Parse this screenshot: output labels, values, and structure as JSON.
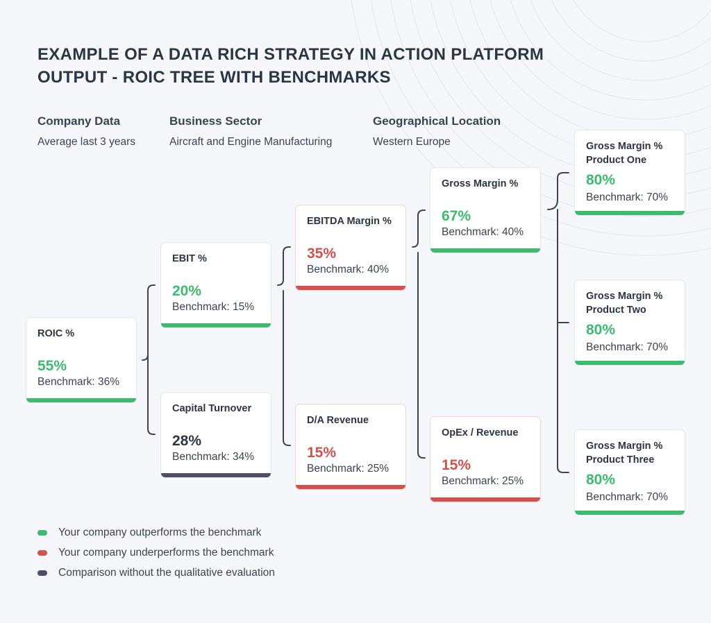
{
  "title": "EXAMPLE OF A DATA RICH STRATEGY IN ACTION PLATFORM OUTPUT - ROIC TREE WITH BENCHMARKS",
  "meta": [
    {
      "heading": "Company Data",
      "value": "Average last 3 years"
    },
    {
      "heading": "Business Sector",
      "value": "Aircraft and Engine Manufacturing"
    },
    {
      "heading": "Geographical Location",
      "value": "Western Europe"
    }
  ],
  "colors": {
    "outperform": "#3dba6f",
    "underperform": "#d4504b",
    "neutral": "#4b5068"
  },
  "nodes": [
    {
      "label": "ROIC %",
      "value": "55%",
      "benchmark": "Benchmark: 36%",
      "status": "outperform"
    },
    {
      "label": "EBIT %",
      "value": "20%",
      "benchmark": "Benchmark: 15%",
      "status": "outperform"
    },
    {
      "label": "Capital Turnover",
      "value": "28%",
      "benchmark": "Benchmark: 34%",
      "status": "neutral"
    },
    {
      "label": "EBITDA Margin %",
      "value": "35%",
      "benchmark": "Benchmark: 40%",
      "status": "underperform"
    },
    {
      "label": "D/A Revenue",
      "value": "15%",
      "benchmark": "Benchmark: 25%",
      "status": "underperform"
    },
    {
      "label": "Gross Margin %",
      "value": "67%",
      "benchmark": "Benchmark: 40%",
      "status": "outperform"
    },
    {
      "label": "OpEx / Revenue",
      "value": "15%",
      "benchmark": "Benchmark: 25%",
      "status": "underperform"
    },
    {
      "label": "Gross Margin % Product One",
      "value": "80%",
      "benchmark": "Benchmark: 70%",
      "status": "outperform"
    },
    {
      "label": "Gross Margin % Product Two",
      "value": "80%",
      "benchmark": "Benchmark: 70%",
      "status": "outperform"
    },
    {
      "label": "Gross Margin % Product Three",
      "value": "80%",
      "benchmark": "Benchmark: 70%",
      "status": "outperform"
    }
  ],
  "legend": [
    {
      "text": "Your company outperforms the benchmark",
      "status": "outperform"
    },
    {
      "text": "Your company underperforms the benchmark",
      "status": "underperform"
    },
    {
      "text": "Comparison without the qualitative evaluation",
      "status": "neutral"
    }
  ]
}
